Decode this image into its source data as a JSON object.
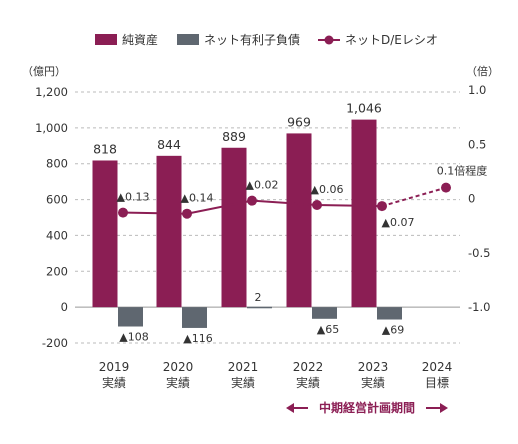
{
  "chart_data": {
    "type": "bar+line",
    "legend": [
      {
        "label": "純資産",
        "kind": "bar",
        "color": "#8B1E54"
      },
      {
        "label": "ネット有利子負債",
        "kind": "bar",
        "color": "#5F6770"
      },
      {
        "label": "ネットD/Eレシオ",
        "kind": "line",
        "color": "#8B1E54"
      }
    ],
    "left_axis_unit": "（億円）",
    "right_axis_unit": "（倍）",
    "left_ylim": [
      -200,
      1200
    ],
    "left_ticks": [
      "1,200",
      "1,000",
      "800",
      "600",
      "400",
      "200",
      "0",
      "-200"
    ],
    "left_tick_values": [
      1200,
      1000,
      800,
      600,
      400,
      200,
      0,
      -200
    ],
    "right_ylim": [
      -1.0,
      1.0
    ],
    "right_ticks": [
      "1.0",
      "0.5",
      "0",
      "-0.5",
      "-1.0"
    ],
    "right_tick_values": [
      1.0,
      0.5,
      0,
      -0.5,
      -1.0
    ],
    "categories": [
      {
        "year": "2019",
        "sub": "実績"
      },
      {
        "year": "2020",
        "sub": "実績"
      },
      {
        "year": "2021",
        "sub": "実績"
      },
      {
        "year": "2022",
        "sub": "実績"
      },
      {
        "year": "2023",
        "sub": "実績"
      },
      {
        "year": "2024",
        "sub": "目標"
      }
    ],
    "series": [
      {
        "name": "純資産",
        "values": [
          818,
          844,
          889,
          969,
          1046,
          null
        ],
        "labels": [
          "818",
          "844",
          "889",
          "969",
          "1,046",
          ""
        ]
      },
      {
        "name": "ネット有利子負債",
        "values": [
          -108,
          -116,
          2,
          -65,
          -69,
          null
        ],
        "labels": [
          "▲108",
          "▲116",
          "2",
          "▲65",
          "▲69",
          ""
        ]
      },
      {
        "name": "ネットD/Eレシオ",
        "values": [
          -0.13,
          -0.14,
          -0.02,
          -0.06,
          -0.07,
          0.1
        ],
        "labels": [
          "▲0.13",
          "▲0.14",
          "▲0.02",
          "▲0.06",
          "▲0.07",
          "0.1倍程度"
        ]
      }
    ],
    "annotation": "中期経営計画期間",
    "grid": true
  }
}
